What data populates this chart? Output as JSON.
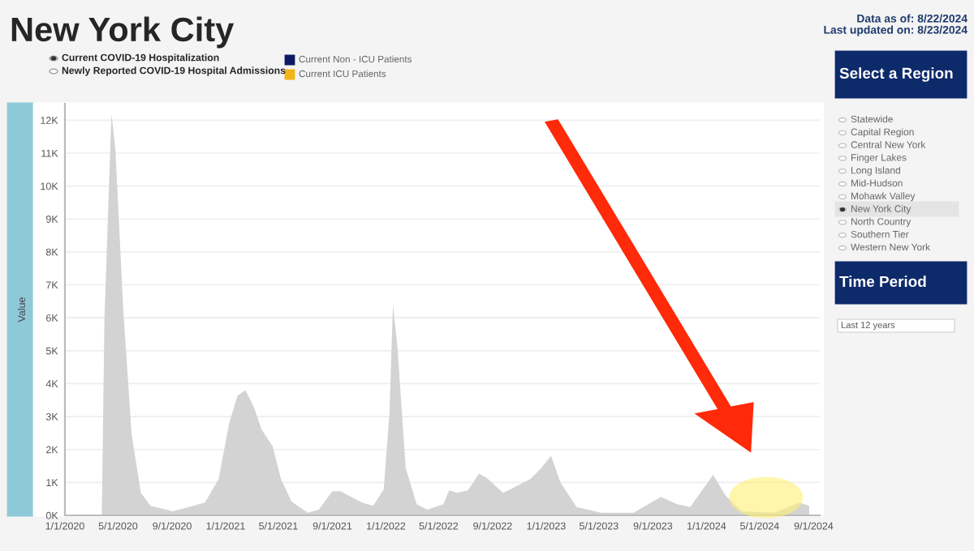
{
  "chart_data": {
    "type": "area",
    "title": "New York City",
    "ylabel": "Value",
    "annotations": [
      "Data as of: 8/22/2024",
      "Last updated on: 8/23/2024",
      "Current COVID-19 Hospitalization",
      "Newly Reported COVID-19 Hospital Admissions",
      "Current Non - ICU Patients",
      "Current ICU Patients",
      "Select a Region",
      "Statewide",
      "Capital Region",
      "Central New York",
      "Finger Lakes",
      "Long Island",
      "Mid-Hudson",
      "Mohawk Valley",
      "New York City",
      "North Country",
      "Southern Tier",
      "Western New York",
      "Time Period",
      "Last 12 years"
    ],
    "x": [
      "2020-03-25",
      "2020-03-31",
      "2020-04-16",
      "2020-04-25",
      "2020-05-13",
      "2020-06-01",
      "2020-06-22",
      "2020-07-14",
      "2020-09-02",
      "2020-10-09",
      "2020-11-15",
      "2020-12-16",
      "2021-01-09",
      "2021-01-28",
      "2021-02-15",
      "2021-03-06",
      "2021-03-24",
      "2021-04-18",
      "2021-05-07",
      "2021-05-31",
      "2021-07-07",
      "2021-08-01",
      "2021-09-01",
      "2021-09-20",
      "2021-10-14",
      "2021-11-08",
      "2021-12-03",
      "2021-12-27",
      "2022-01-09",
      "2022-01-17",
      "2022-01-27",
      "2022-02-15",
      "2022-03-12",
      "2022-04-05",
      "2022-05-12",
      "2022-05-25",
      "2022-06-12",
      "2022-07-07",
      "2022-08-01",
      "2022-08-19",
      "2022-09-25",
      "2022-11-26",
      "2022-12-21",
      "2023-01-12",
      "2023-02-02",
      "2023-03-11",
      "2023-05-06",
      "2023-07-19",
      "2023-09-19",
      "2023-10-26",
      "2023-11-25",
      "2024-01-16",
      "2024-02-14",
      "2024-03-22",
      "2024-06-04",
      "2024-07-30",
      "2024-08-22"
    ],
    "series": [
      {
        "color": "#d3d3d3",
        "values": [
          0,
          6000,
          12200,
          11100,
          6200,
          2450,
          680,
          290,
          120,
          250,
          390,
          1100,
          2800,
          3630,
          3800,
          3300,
          2600,
          2100,
          1100,
          420,
          80,
          170,
          730,
          730,
          560,
          390,
          290,
          790,
          3100,
          6400,
          5150,
          1440,
          340,
          170,
          340,
          760,
          680,
          760,
          1270,
          1130,
          680,
          1100,
          1440,
          1810,
          1010,
          250,
          80,
          80,
          560,
          340,
          250,
          1230,
          590,
          120,
          80,
          390,
          290
        ]
      }
    ],
    "xlim": [
      "2020-01-01",
      "2024-09-15"
    ],
    "xticks": [
      {
        "value": "2020-01-01",
        "label": "1/1/2020"
      },
      {
        "value": "2020-05-01",
        "label": "5/1/2020"
      },
      {
        "value": "2020-09-01",
        "label": "9/1/2020"
      },
      {
        "value": "2021-01-01",
        "label": "1/1/2021"
      },
      {
        "value": "2021-05-01",
        "label": "5/1/2021"
      },
      {
        "value": "2021-09-01",
        "label": "9/1/2021"
      },
      {
        "value": "2022-01-01",
        "label": "1/1/2022"
      },
      {
        "value": "2022-05-01",
        "label": "5/1/2022"
      },
      {
        "value": "2022-09-01",
        "label": "9/1/2022"
      },
      {
        "value": "2023-01-01",
        "label": "1/1/2023"
      },
      {
        "value": "2023-05-01",
        "label": "5/1/2023"
      },
      {
        "value": "2023-09-01",
        "label": "9/1/2023"
      },
      {
        "value": "2024-01-01",
        "label": "1/1/2024"
      },
      {
        "value": "2024-05-01",
        "label": "5/1/2024"
      },
      {
        "value": "2024-09-01",
        "label": "9/1/2024"
      }
    ],
    "ylim": [
      0,
      12500
    ],
    "yticks": [
      {
        "value": 0,
        "label": "0K"
      },
      {
        "value": 1000,
        "label": "1K"
      },
      {
        "value": 2000,
        "label": "2K"
      },
      {
        "value": 3000,
        "label": "3K"
      },
      {
        "value": 4000,
        "label": "4K"
      },
      {
        "value": 5000,
        "label": "5K"
      },
      {
        "value": 6000,
        "label": "6K"
      },
      {
        "value": 7000,
        "label": "7K"
      },
      {
        "value": 8000,
        "label": "8K"
      },
      {
        "value": 9000,
        "label": "9K"
      },
      {
        "value": 10000,
        "label": "10K"
      },
      {
        "value": 11000,
        "label": "11K"
      },
      {
        "value": 12000,
        "label": "12K"
      }
    ],
    "grid": "y"
  }
}
